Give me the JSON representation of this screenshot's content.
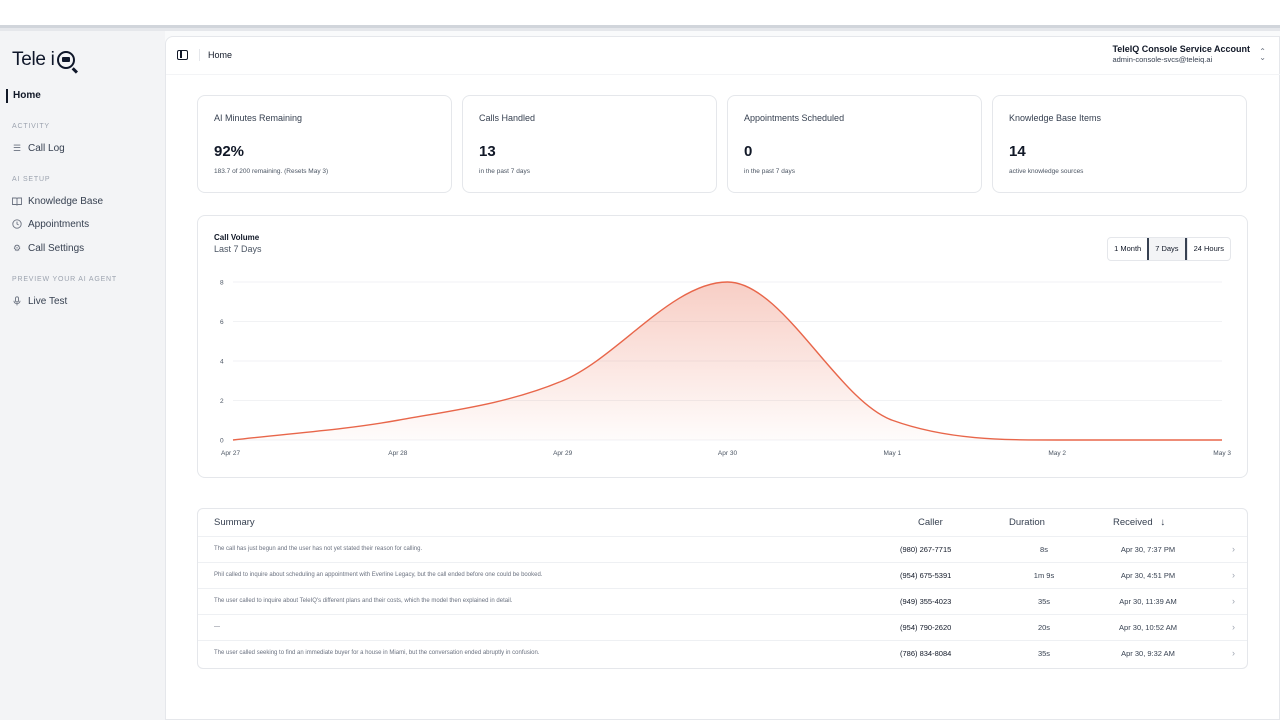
{
  "sidebar": {
    "brand": "Tele i",
    "home": "Home",
    "sections": {
      "activity": "ACTIVITY",
      "ai_setup": "AI SETUP",
      "preview": "PREVIEW YOUR AI AGENT"
    },
    "items": [
      {
        "label": "Call Log",
        "icon": "list-icon"
      },
      {
        "label": "Knowledge Base",
        "icon": "book-icon"
      },
      {
        "label": "Appointments",
        "icon": "clock-icon"
      },
      {
        "label": "Call Settings",
        "icon": "gear-icon"
      },
      {
        "label": "Live Test",
        "icon": "microphone-icon"
      }
    ]
  },
  "header": {
    "breadcrumb": "Home",
    "account_name": "TeleIQ Console Service Account",
    "account_email": "admin-console-svcs@teleiq.ai"
  },
  "stats": [
    {
      "label": "AI Minutes Remaining",
      "value": "92%",
      "sub": "183.7 of 200 remaining. (Resets May 3)"
    },
    {
      "label": "Calls Handled",
      "value": "13",
      "sub": "in the past 7 days"
    },
    {
      "label": "Appointments Scheduled",
      "value": "0",
      "sub": "in the past 7 days"
    },
    {
      "label": "Knowledge Base Items",
      "value": "14",
      "sub": "active knowledge sources"
    }
  ],
  "chart": {
    "title": "Call Volume",
    "subtitle": "Last 7 Days",
    "ranges": [
      "1 Month",
      "7 Days",
      "24 Hours"
    ],
    "selected_range": "7 Days"
  },
  "chart_data": {
    "type": "area",
    "title": "Call Volume",
    "subtitle": "Last 7 Days",
    "x": [
      "Apr 27",
      "Apr 28",
      "Apr 29",
      "Apr 30",
      "May 1",
      "May 2",
      "May 3"
    ],
    "values": [
      0,
      1,
      3,
      8,
      1,
      0,
      0
    ],
    "yticks": [
      0,
      2,
      4,
      6,
      8
    ],
    "ylim": [
      0,
      8
    ],
    "grid": true,
    "color": "#e8664a"
  },
  "table": {
    "headers": {
      "summary": "Summary",
      "caller": "Caller",
      "duration": "Duration",
      "received": "Received",
      "sort_icon": "arrow-down-icon"
    },
    "rows": [
      {
        "summary": "The call has just begun and the user has not yet stated their reason for calling.",
        "caller": "(980) 267-7715",
        "duration": "8s",
        "received": "Apr 30, 7:37 PM"
      },
      {
        "summary": "Phil called to inquire about scheduling an appointment with Everline Legacy, but the call ended before one could be booked.",
        "caller": "(954) 675-5391",
        "duration": "1m 9s",
        "received": "Apr 30, 4:51 PM"
      },
      {
        "summary": "The user called to inquire about TeleIQ's different plans and their costs, which the model then explained in detail.",
        "caller": "(949) 355-4023",
        "duration": "35s",
        "received": "Apr 30, 11:39 AM"
      },
      {
        "summary": "—",
        "caller": "(954) 790-2620",
        "duration": "20s",
        "received": "Apr 30, 10:52 AM"
      },
      {
        "summary": "The user called seeking to find an immediate buyer for a house in Miami, but the conversation ended abruptly in confusion.",
        "caller": "(786) 834-8084",
        "duration": "35s",
        "received": "Apr 30, 9:32 AM"
      }
    ]
  }
}
